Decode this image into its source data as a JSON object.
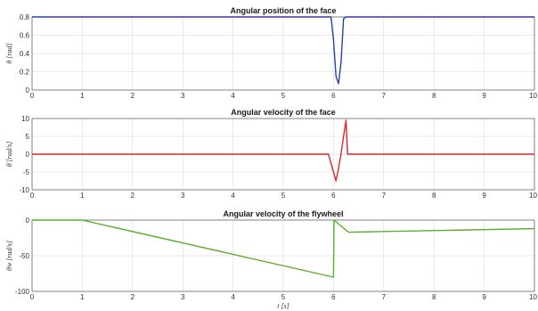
{
  "chart_data": [
    {
      "type": "line",
      "title": "Angular position of the face",
      "ylabel": "θ [rad]",
      "xlabel": "",
      "xlim": [
        0,
        10
      ],
      "ylim": [
        0,
        0.8
      ],
      "xticks": [
        "0",
        "1",
        "2",
        "3",
        "4",
        "5",
        "6",
        "7",
        "8",
        "9",
        "10"
      ],
      "yticks": [
        0,
        0.2,
        0.4,
        0.6,
        0.8
      ],
      "grid": true,
      "series": [
        {
          "color": "#2b3fa8",
          "x": [
            0,
            5.95,
            6.0,
            6.05,
            6.1,
            6.15,
            6.2,
            6.25,
            10
          ],
          "y": [
            0.8,
            0.8,
            0.55,
            0.15,
            0.07,
            0.3,
            0.78,
            0.8,
            0.8
          ]
        }
      ]
    },
    {
      "type": "line",
      "title": "Angular velocity of the face",
      "ylabel": "θ̇ [rad/s]",
      "xlabel": "",
      "xlim": [
        0,
        10
      ],
      "ylim": [
        -10,
        10
      ],
      "xticks": [
        "0",
        "1",
        "2",
        "3",
        "4",
        "5",
        "6",
        "7",
        "8",
        "9",
        "10"
      ],
      "yticks": [
        -10,
        -5,
        0,
        5,
        10
      ],
      "grid": true,
      "series": [
        {
          "color": "#e0252b",
          "x": [
            0,
            5.9,
            6.0,
            6.05,
            6.1,
            6.15,
            6.2,
            6.25,
            6.28,
            10
          ],
          "y": [
            0,
            0,
            -5,
            -7.5,
            -4,
            0,
            5,
            9.5,
            0,
            0
          ]
        }
      ]
    },
    {
      "type": "line",
      "title": "Angular velocity of the flywheel",
      "ylabel": "θ̇w [rad/s]",
      "xlabel": "t [s]",
      "xlim": [
        0,
        10
      ],
      "ylim": [
        -100,
        0
      ],
      "xticks": [
        "0",
        "1",
        "2",
        "3",
        "4",
        "5",
        "6",
        "7",
        "8",
        "9",
        "10"
      ],
      "yticks": [
        -100,
        -50,
        0
      ],
      "grid": true,
      "series": [
        {
          "color": "#5aad2f",
          "x": [
            0,
            1,
            6,
            6.01,
            6.3,
            10
          ],
          "y": [
            0,
            0,
            -80,
            0,
            -17,
            -12
          ]
        }
      ]
    }
  ]
}
